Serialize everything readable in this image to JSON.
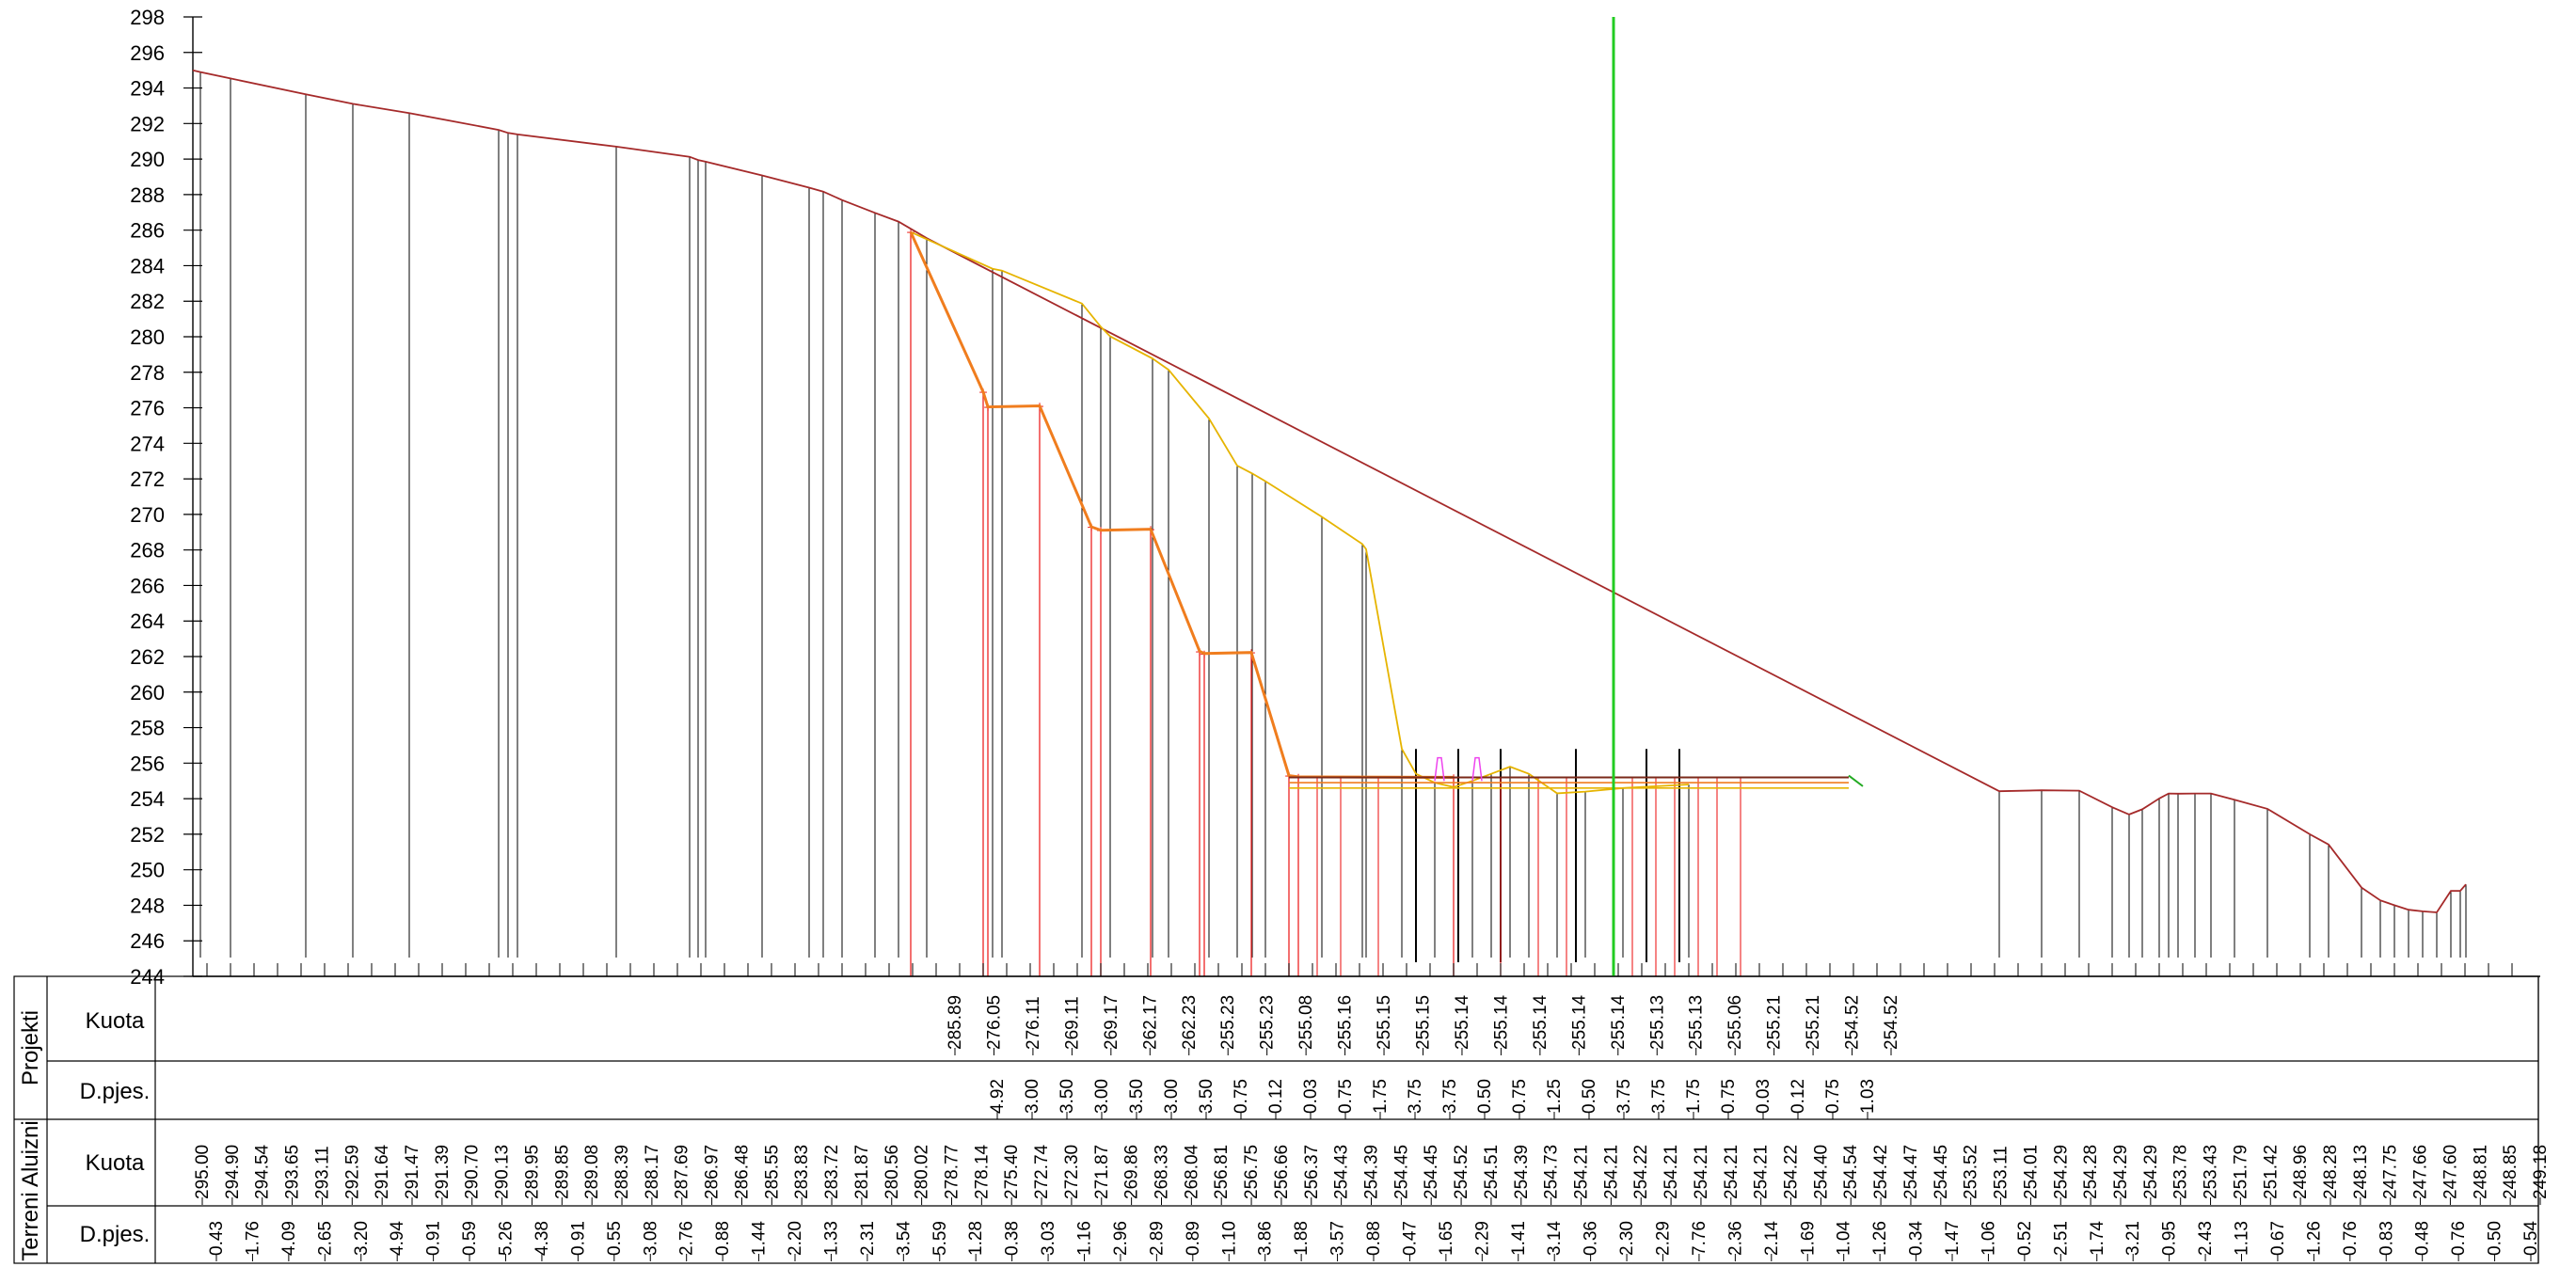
{
  "axis": {
    "ticks": [
      "298",
      "296",
      "294",
      "292",
      "290",
      "288",
      "286",
      "284",
      "282",
      "280",
      "278",
      "276",
      "274",
      "272",
      "270",
      "268",
      "266",
      "264",
      "262",
      "260",
      "258",
      "256",
      "254",
      "252",
      "250",
      "248",
      "246",
      "244"
    ]
  },
  "band": {
    "group_projekti": "Projekti",
    "group_terreni": "Terreni Aluizni",
    "row_kuota": "Kuota",
    "row_dpjes": "D.pjes."
  },
  "chart_data": {
    "type": "line",
    "ylim": [
      244,
      298
    ],
    "series": [
      {
        "key": "terrain",
        "color": "#a52a2a",
        "points": [
          [
            0,
            295.0
          ],
          [
            8,
            294.9
          ],
          [
            40,
            294.54
          ],
          [
            120,
            293.65
          ],
          [
            170,
            293.11
          ],
          [
            230,
            292.59
          ],
          [
            325,
            291.64
          ],
          [
            335,
            291.47
          ],
          [
            345,
            291.39
          ],
          [
            450,
            290.7
          ],
          [
            528,
            290.13
          ],
          [
            537,
            289.95
          ],
          [
            545,
            289.85
          ],
          [
            605,
            289.08
          ],
          [
            655,
            288.39
          ],
          [
            670,
            288.17
          ],
          [
            690,
            287.69
          ],
          [
            725,
            286.97
          ],
          [
            750,
            286.48
          ],
          [
            780,
            285.55
          ],
          [
            1920,
            254.42
          ],
          [
            1965,
            254.47
          ],
          [
            2005,
            254.45
          ],
          [
            2040,
            253.52
          ],
          [
            2058,
            253.11
          ],
          [
            2072,
            253.4
          ],
          [
            2090,
            254.01
          ],
          [
            2100,
            254.29
          ],
          [
            2110,
            254.28
          ],
          [
            2128,
            254.29
          ],
          [
            2145,
            254.29
          ],
          [
            2170,
            253.94
          ],
          [
            2205,
            253.43
          ],
          [
            2250,
            252.0
          ],
          [
            2270,
            251.42
          ],
          [
            2305,
            249.0
          ],
          [
            2325,
            248.28
          ],
          [
            2340,
            248.0
          ],
          [
            2355,
            247.75
          ],
          [
            2370,
            247.66
          ],
          [
            2385,
            247.6
          ],
          [
            2400,
            248.81
          ],
          [
            2410,
            248.81
          ],
          [
            2416,
            249.18
          ]
        ]
      },
      {
        "key": "natural-ground",
        "color": "#e6b400",
        "points": [
          [
            763,
            285.89
          ],
          [
            850,
            283.83
          ],
          [
            860,
            283.72
          ],
          [
            945,
            281.87
          ],
          [
            965,
            280.56
          ],
          [
            975,
            280.02
          ],
          [
            1020,
            278.77
          ],
          [
            1037,
            278.14
          ],
          [
            1080,
            275.4
          ],
          [
            1110,
            272.74
          ],
          [
            1126,
            272.3
          ],
          [
            1140,
            271.87
          ],
          [
            1200,
            269.86
          ],
          [
            1243,
            268.33
          ],
          [
            1247,
            268.04
          ],
          [
            1285,
            256.8
          ],
          [
            1300,
            255.4
          ],
          [
            1320,
            254.9
          ],
          [
            1340,
            254.65
          ],
          [
            1360,
            255.0
          ],
          [
            1380,
            255.4
          ],
          [
            1400,
            255.8
          ],
          [
            1420,
            255.4
          ],
          [
            1450,
            254.3
          ],
          [
            1480,
            254.4
          ],
          [
            1520,
            254.6
          ],
          [
            1590,
            254.8
          ]
        ]
      },
      {
        "key": "design",
        "color": "#f07d1e",
        "points": [
          [
            763,
            285.89
          ],
          [
            840,
            276.9
          ],
          [
            845,
            276.05
          ],
          [
            900,
            276.11
          ],
          [
            955,
            269.3
          ],
          [
            965,
            269.11
          ],
          [
            1018,
            269.17
          ],
          [
            1070,
            262.3
          ],
          [
            1075,
            262.17
          ],
          [
            1125,
            262.23
          ],
          [
            1165,
            255.3
          ],
          [
            1175,
            255.23
          ],
          [
            1340,
            255.2
          ]
        ]
      }
    ],
    "projekti_kuota": [
      "285.89",
      "276.05",
      "276.11",
      "269.11",
      "269.17",
      "262.17",
      "262.23",
      "255.23",
      "255.23",
      "255.08",
      "255.16",
      "255.15",
      "255.15",
      "255.14",
      "255.14",
      "255.14",
      "255.14",
      "255.14",
      "255.13",
      "255.13",
      "255.06",
      "255.21",
      "255.21",
      "254.52",
      "254.52"
    ],
    "projekti_dpjes": [
      "4.92",
      "3.00",
      "3.50",
      "3.00",
      "3.50",
      "3.00",
      "3.50",
      "0.75",
      "0.12",
      "0.03",
      "0.75",
      "1.75",
      "3.75",
      "3.75",
      "0.50",
      "0.75",
      "1.25",
      "0.50",
      "3.75",
      "3.75",
      "1.75",
      "0.75",
      "0.03",
      "0.12",
      "0.75",
      "1.03"
    ],
    "terreni_kuota": [
      "295.00",
      "294.90",
      "294.54",
      "293.65",
      "293.11",
      "292.59",
      "291.64",
      "291.47",
      "291.39",
      "290.70",
      "290.13",
      "289.95",
      "289.85",
      "289.08",
      "288.39",
      "288.17",
      "287.69",
      "286.97",
      "286.48",
      "285.55",
      "283.83",
      "283.72",
      "281.87",
      "280.56",
      "280.02",
      "278.77",
      "278.14",
      "275.40",
      "272.74",
      "272.30",
      "271.87",
      "269.86",
      "268.33",
      "268.04",
      "256.81",
      "256.75",
      "256.66",
      "256.37",
      "254.43",
      "254.39",
      "254.45",
      "254.45",
      "254.52",
      "254.51",
      "254.39",
      "254.73",
      "254.21",
      "254.21",
      "254.22",
      "254.21",
      "254.21",
      "254.21",
      "254.21",
      "254.22",
      "254.40",
      "254.54",
      "254.42",
      "254.47",
      "254.45",
      "253.52",
      "253.11",
      "254.01",
      "254.29",
      "254.28",
      "254.29",
      "254.29",
      "253.78",
      "253.43",
      "251.79",
      "251.42",
      "248.96",
      "248.28",
      "248.13",
      "247.75",
      "247.66",
      "247.60",
      "248.81",
      "248.85",
      "249.18"
    ],
    "terreni_dpjes": [
      "0.43",
      "1.76",
      "4.09",
      "2.65",
      "3.20",
      "4.94",
      "0.91",
      "0.59",
      "5.26",
      "4.38",
      "0.91",
      "0.55",
      "3.08",
      "2.76",
      "0.88",
      "1.44",
      "2.20",
      "1.33",
      "2.31",
      "3.54",
      "5.59",
      "1.28",
      "0.38",
      "3.03",
      "1.16",
      "2.96",
      "2.89",
      "0.89",
      "1.10",
      "3.86",
      "1.88",
      "3.57",
      "0.88",
      "0.47",
      "1.65",
      "2.29",
      "1.41",
      "3.14",
      "0.36",
      "2.30",
      "2.29",
      "7.76",
      "2.36",
      "2.14",
      "1.69",
      "1.04",
      "1.26",
      "0.34",
      "1.47",
      "1.06",
      "0.52",
      "2.51",
      "1.74",
      "3.21",
      "0.95",
      "2.43",
      "1.13",
      "0.67",
      "1.26",
      "0.76",
      "0.83",
      "0.48",
      "0.76",
      "0.50",
      "0.54"
    ]
  }
}
